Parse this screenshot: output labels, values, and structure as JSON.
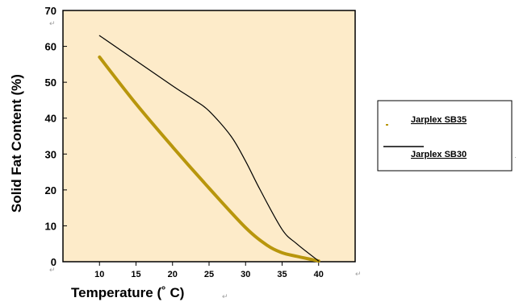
{
  "chart_data": {
    "type": "line",
    "title": "",
    "xlabel": "Temperature (˚ C)",
    "ylabel": "Solid Fat Content (%)",
    "xlim": [
      5,
      45
    ],
    "ylim": [
      0,
      70
    ],
    "x_ticks": [
      "10",
      "15",
      "20",
      "25",
      "30",
      "35",
      "40"
    ],
    "y_ticks": [
      "0",
      "10",
      "20",
      "30",
      "40",
      "50",
      "60",
      "70"
    ],
    "grid": false,
    "legend_position": "right",
    "series": [
      {
        "name": "Jarplex SB35",
        "color": "#b8960c",
        "x": [
          10,
          15,
          20,
          25,
          30,
          33,
          35,
          37,
          40
        ],
        "y": [
          57,
          44,
          32,
          20.5,
          9.5,
          4.5,
          2.5,
          1.5,
          0.2
        ]
      },
      {
        "name": "Jarplex SB30",
        "color": "#000000",
        "x": [
          10,
          15,
          20,
          23,
          25,
          28,
          30,
          32,
          35,
          37,
          40
        ],
        "y": [
          63,
          56,
          49,
          45,
          42,
          35,
          28,
          20,
          9,
          5,
          0.2
        ]
      }
    ]
  }
}
